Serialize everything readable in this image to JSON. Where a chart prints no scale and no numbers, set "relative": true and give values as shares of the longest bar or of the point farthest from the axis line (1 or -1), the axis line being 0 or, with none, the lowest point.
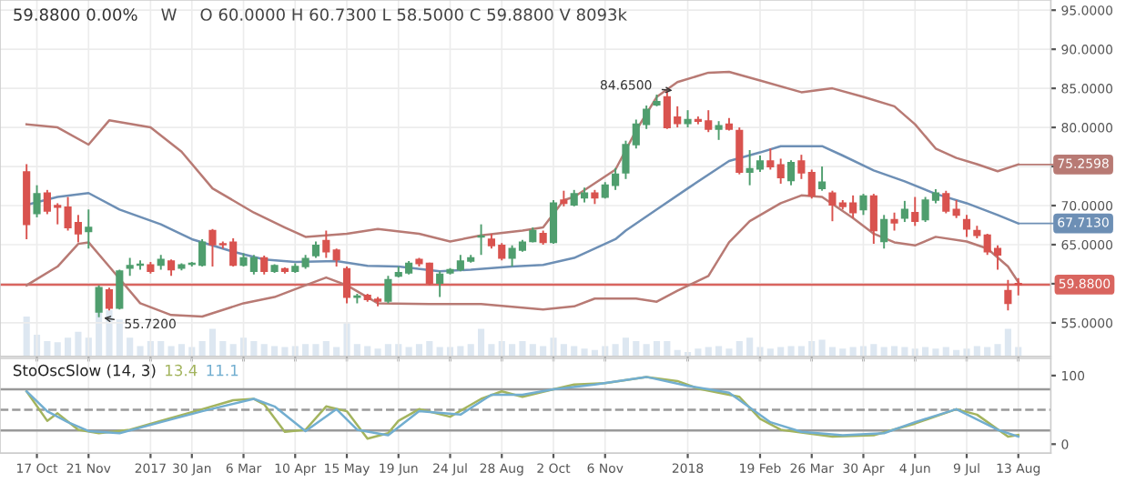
{
  "chart_data": [
    {
      "type": "candlestick",
      "title": "59.8800 0.00%",
      "annotations": [
        "W",
        "O 60.0000 H 60.7300 L 58.5000 C 59.8800 V 8093k",
        {
          "text": "55.7200",
          "x": "2016-11-28",
          "y": 55.72
        },
        {
          "text": "84.6500",
          "x": "2017-12-25",
          "y": 84.65
        }
      ],
      "x": [
        "2016-10-10",
        "2016-10-17",
        "2016-10-24",
        "2016-10-31",
        "2016-11-07",
        "2016-11-14",
        "2016-11-21",
        "2016-11-28",
        "2016-12-05",
        "2016-12-12",
        "2016-12-19",
        "2016-12-26",
        "2017-01-02",
        "2017-01-09",
        "2017-01-16",
        "2017-01-23",
        "2017-01-30",
        "2017-02-06",
        "2017-02-13",
        "2017-02-20",
        "2017-02-27",
        "2017-03-06",
        "2017-03-13",
        "2017-03-20",
        "2017-03-27",
        "2017-04-03",
        "2017-04-10",
        "2017-04-17",
        "2017-04-24",
        "2017-05-01",
        "2017-05-08",
        "2017-05-15",
        "2017-05-22",
        "2017-05-29",
        "2017-06-05",
        "2017-06-12",
        "2017-06-19",
        "2017-06-26",
        "2017-07-03",
        "2017-07-10",
        "2017-07-17",
        "2017-07-24",
        "2017-07-31",
        "2017-08-07",
        "2017-08-14",
        "2017-08-21",
        "2017-08-28",
        "2017-09-04",
        "2017-09-11",
        "2017-09-18",
        "2017-09-25",
        "2017-10-02",
        "2017-10-09",
        "2017-10-16",
        "2017-10-23",
        "2017-10-30",
        "2017-11-06",
        "2017-11-13",
        "2017-11-20",
        "2017-11-27",
        "2017-12-04",
        "2017-12-11",
        "2017-12-18",
        "2017-12-25",
        "2018-01-01",
        "2018-01-08",
        "2018-01-15",
        "2018-01-22",
        "2018-01-29",
        "2018-02-05",
        "2018-02-12",
        "2018-02-19",
        "2018-02-26",
        "2018-03-05",
        "2018-03-12",
        "2018-03-19",
        "2018-03-26",
        "2018-04-02",
        "2018-04-09",
        "2018-04-16",
        "2018-04-23",
        "2018-04-30",
        "2018-05-07",
        "2018-05-14",
        "2018-05-21",
        "2018-05-28",
        "2018-06-04",
        "2018-06-11",
        "2018-06-18",
        "2018-06-25",
        "2018-07-02",
        "2018-07-09",
        "2018-07-16",
        "2018-07-23",
        "2018-07-30",
        "2018-08-06",
        "2018-08-13"
      ],
      "ohlc": [
        [
          74.3,
          75.3,
          65.7,
          67.6
        ],
        [
          69.0,
          72.6,
          68.5,
          71.5
        ],
        [
          71.6,
          72.0,
          68.9,
          69.3
        ],
        [
          70.0,
          70.3,
          67.6,
          69.8
        ],
        [
          69.8,
          71.1,
          66.8,
          67.2
        ],
        [
          67.8,
          68.8,
          65.3,
          66.4
        ],
        [
          66.7,
          69.5,
          64.5,
          67.2
        ],
        [
          56.4,
          59.8,
          55.72,
          59.5
        ],
        [
          59.2,
          59.5,
          56.6,
          56.9
        ],
        [
          56.9,
          61.8,
          56.7,
          61.6
        ],
        [
          62.0,
          63.3,
          61.0,
          62.3
        ],
        [
          62.4,
          63.0,
          61.8,
          62.5
        ],
        [
          62.4,
          62.8,
          61.3,
          61.6
        ],
        [
          62.4,
          63.7,
          61.8,
          63.1
        ],
        [
          62.9,
          63.1,
          61.0,
          61.8
        ],
        [
          62.0,
          62.6,
          61.7,
          62.4
        ],
        [
          62.5,
          62.8,
          62.2,
          62.6
        ],
        [
          62.4,
          65.7,
          62.2,
          65.3
        ],
        [
          66.8,
          67.0,
          62.2,
          65.0
        ],
        [
          65.1,
          65.4,
          64.5,
          65.0
        ],
        [
          65.3,
          65.8,
          62.2,
          62.4
        ],
        [
          62.4,
          63.9,
          62.2,
          63.3
        ],
        [
          61.6,
          63.7,
          61.2,
          63.3
        ],
        [
          63.3,
          63.6,
          61.2,
          61.6
        ],
        [
          61.6,
          62.5,
          61.4,
          62.3
        ],
        [
          61.9,
          62.1,
          61.3,
          61.6
        ],
        [
          61.6,
          62.6,
          61.4,
          62.2
        ],
        [
          62.2,
          63.7,
          61.9,
          63.2
        ],
        [
          63.6,
          65.4,
          63.3,
          64.9
        ],
        [
          65.5,
          66.8,
          63.3,
          64.1
        ],
        [
          64.3,
          64.5,
          62.2,
          63.1
        ],
        [
          61.9,
          62.2,
          57.5,
          58.3
        ],
        [
          58.3,
          58.7,
          57.5,
          58.4
        ],
        [
          58.5,
          58.7,
          57.7,
          58.0
        ],
        [
          58.0,
          58.3,
          57.1,
          57.8
        ],
        [
          57.8,
          61.0,
          57.5,
          60.5
        ],
        [
          61.0,
          62.2,
          60.8,
          61.4
        ],
        [
          61.4,
          62.9,
          61.2,
          62.6
        ],
        [
          63.1,
          63.3,
          62.2,
          62.6
        ],
        [
          62.6,
          62.7,
          59.8,
          60.1
        ],
        [
          60.1,
          61.6,
          58.3,
          61.2
        ],
        [
          61.4,
          62.0,
          61.2,
          61.8
        ],
        [
          61.8,
          63.7,
          61.6,
          62.9
        ],
        [
          62.9,
          63.7,
          62.7,
          63.3
        ],
        [
          66.0,
          67.6,
          63.7,
          66.1
        ],
        [
          65.7,
          66.4,
          64.5,
          64.9
        ],
        [
          64.9,
          65.2,
          63.0,
          63.3
        ],
        [
          63.3,
          64.9,
          62.2,
          64.5
        ],
        [
          64.3,
          65.6,
          64.1,
          65.3
        ],
        [
          65.4,
          67.2,
          65.3,
          66.8
        ],
        [
          66.4,
          66.8,
          65.0,
          65.3
        ],
        [
          65.3,
          70.7,
          65.1,
          70.3
        ],
        [
          70.7,
          71.9,
          69.9,
          70.3
        ],
        [
          70.1,
          72.0,
          69.9,
          71.5
        ],
        [
          71.0,
          72.3,
          70.4,
          71.6
        ],
        [
          71.6,
          72.0,
          70.2,
          71.0
        ],
        [
          71.1,
          73.0,
          70.9,
          72.6
        ],
        [
          72.6,
          74.8,
          72.0,
          74.0
        ],
        [
          74.2,
          78.3,
          73.4,
          77.8
        ],
        [
          77.8,
          81.0,
          77.3,
          80.4
        ],
        [
          80.4,
          82.8,
          79.8,
          82.3
        ],
        [
          82.9,
          84.2,
          82.7,
          83.3
        ],
        [
          83.9,
          84.65,
          79.8,
          80.0
        ],
        [
          81.3,
          82.7,
          80.0,
          80.5
        ],
        [
          80.5,
          82.2,
          80.0,
          81.0
        ],
        [
          81.0,
          81.4,
          80.4,
          80.8
        ],
        [
          80.8,
          82.2,
          79.4,
          79.8
        ],
        [
          79.8,
          80.8,
          78.4,
          80.2
        ],
        [
          80.4,
          81.2,
          79.6,
          79.8
        ],
        [
          79.6,
          80.0,
          74.0,
          74.3
        ],
        [
          74.3,
          77.1,
          72.6,
          74.7
        ],
        [
          74.7,
          76.4,
          74.3,
          75.7
        ],
        [
          75.7,
          77.3,
          74.6,
          75.0
        ],
        [
          75.2,
          76.0,
          72.8,
          73.6
        ],
        [
          73.2,
          75.8,
          72.6,
          75.5
        ],
        [
          75.7,
          76.5,
          73.4,
          74.2
        ],
        [
          74.2,
          74.6,
          70.9,
          71.3
        ],
        [
          72.2,
          75.0,
          71.9,
          73.0
        ],
        [
          71.6,
          71.9,
          68.0,
          70.1
        ],
        [
          70.3,
          70.7,
          69.5,
          69.9
        ],
        [
          70.3,
          71.3,
          68.4,
          69.1
        ],
        [
          69.5,
          71.5,
          68.8,
          71.2
        ],
        [
          71.2,
          71.5,
          65.1,
          66.8
        ],
        [
          65.4,
          68.8,
          64.5,
          68.2
        ],
        [
          68.2,
          69.1,
          66.8,
          67.8
        ],
        [
          68.4,
          70.6,
          67.9,
          69.5
        ],
        [
          69.1,
          71.1,
          67.4,
          68.0
        ],
        [
          68.2,
          71.1,
          67.9,
          70.7
        ],
        [
          70.7,
          72.1,
          70.3,
          71.6
        ],
        [
          71.5,
          71.9,
          69.0,
          69.3
        ],
        [
          69.5,
          70.7,
          68.4,
          68.8
        ],
        [
          68.2,
          68.8,
          66.0,
          67.0
        ],
        [
          66.8,
          67.4,
          65.8,
          66.2
        ],
        [
          66.2,
          66.4,
          63.7,
          64.1
        ],
        [
          64.5,
          64.9,
          61.8,
          63.7
        ],
        [
          59.1,
          60.5,
          56.6,
          57.5
        ],
        [
          60.0,
          60.73,
          58.5,
          59.88
        ]
      ],
      "colors": [
        "#d9534f",
        "#4f9e6e",
        "#d9534f",
        "#d9534f",
        "#d9534f",
        "#d9534f",
        "#4f9e6e",
        "#4f9e6e",
        "#d9534f",
        "#4f9e6e",
        "#4f9e6e",
        "#4f9e6e",
        "#d9534f",
        "#4f9e6e",
        "#d9534f",
        "#4f9e6e",
        "#4f9e6e",
        "#4f9e6e",
        "#d9534f",
        "#d9534f",
        "#d9534f",
        "#4f9e6e",
        "#4f9e6e",
        "#d9534f",
        "#4f9e6e",
        "#d9534f",
        "#4f9e6e",
        "#4f9e6e",
        "#4f9e6e",
        "#d9534f",
        "#d9534f",
        "#d9534f",
        "#4f9e6e",
        "#d9534f",
        "#d9534f",
        "#4f9e6e",
        "#4f9e6e",
        "#4f9e6e",
        "#d9534f",
        "#d9534f",
        "#4f9e6e",
        "#4f9e6e",
        "#4f9e6e",
        "#4f9e6e",
        "#4f9e6e",
        "#d9534f",
        "#d9534f",
        "#4f9e6e",
        "#4f9e6e",
        "#4f9e6e",
        "#d9534f",
        "#4f9e6e",
        "#d9534f",
        "#4f9e6e",
        "#4f9e6e",
        "#d9534f",
        "#4f9e6e",
        "#4f9e6e",
        "#4f9e6e",
        "#4f9e6e",
        "#4f9e6e",
        "#4f9e6e",
        "#d9534f",
        "#d9534f",
        "#4f9e6e",
        "#d9534f",
        "#d9534f",
        "#4f9e6e",
        "#d9534f",
        "#d9534f",
        "#4f9e6e",
        "#4f9e6e",
        "#d9534f",
        "#d9534f",
        "#4f9e6e",
        "#d9534f",
        "#d9534f",
        "#4f9e6e",
        "#d9534f",
        "#d9534f",
        "#d9534f",
        "#4f9e6e",
        "#d9534f",
        "#4f9e6e",
        "#d9534f",
        "#4f9e6e",
        "#d9534f",
        "#4f9e6e",
        "#4f9e6e",
        "#d9534f",
        "#d9534f",
        "#d9534f",
        "#d9534f",
        "#d9534f",
        "#d9534f",
        "#d9534f",
        "#d9534f"
      ],
      "series": [
        {
          "type": "line",
          "color": "#b87a74",
          "x": [
            "2016-10-10",
            "2016-10-31",
            "2016-11-21",
            "2016-12-05",
            "2017-01-02",
            "2017-01-23",
            "2017-02-13",
            "2017-03-13",
            "2017-04-03",
            "2017-04-17",
            "2017-05-15",
            "2017-06-05",
            "2017-07-03",
            "2017-07-24",
            "2017-08-14",
            "2017-09-11",
            "2017-09-25",
            "2017-10-09",
            "2017-10-16",
            "2017-11-13",
            "2017-11-27",
            "2017-12-11",
            "2017-12-25",
            "2018-01-15",
            "2018-01-29",
            "2018-02-19",
            "2018-03-19",
            "2018-04-09",
            "2018-04-30",
            "2018-05-21",
            "2018-06-04",
            "2018-06-18",
            "2018-07-02",
            "2018-07-16",
            "2018-07-30",
            "2018-08-13"
          ],
          "values": [
            80.4,
            80.0,
            77.8,
            80.9,
            80.0,
            76.9,
            72.2,
            69.1,
            67.2,
            66.0,
            66.4,
            67.0,
            66.4,
            65.4,
            66.2,
            66.8,
            67.2,
            70.7,
            71.1,
            74.6,
            79.6,
            83.9,
            85.8,
            87.0,
            87.1,
            86.0,
            84.5,
            85.0,
            83.9,
            82.7,
            80.4,
            77.3,
            76.1,
            75.3,
            74.4,
            75.2598
          ],
          "value_labels": [
            null,
            null,
            null,
            null,
            null,
            null,
            null,
            null,
            null,
            null,
            null,
            null,
            null,
            null,
            null,
            null,
            null,
            null,
            null,
            null,
            null,
            null,
            null,
            null,
            null,
            null,
            null,
            null,
            null,
            null,
            null,
            null,
            null,
            null,
            null,
            "75.2598"
          ]
        },
        {
          "type": "line",
          "color": "#6d8fb5",
          "x": [
            "2016-10-10",
            "2016-10-31",
            "2016-11-21",
            "2016-12-12",
            "2017-01-09",
            "2017-01-30",
            "2017-02-27",
            "2017-03-20",
            "2017-04-10",
            "2017-05-08",
            "2017-05-29",
            "2017-06-19",
            "2017-07-17",
            "2017-08-07",
            "2017-09-04",
            "2017-09-25",
            "2017-10-16",
            "2017-11-13",
            "2017-11-20",
            "2017-12-11",
            "2018-01-01",
            "2018-01-29",
            "2018-02-19",
            "2018-03-05",
            "2018-04-02",
            "2018-04-16",
            "2018-05-07",
            "2018-05-28",
            "2018-06-18",
            "2018-07-09",
            "2018-07-30",
            "2018-08-13"
          ],
          "values": [
            70.1,
            71.1,
            71.6,
            69.5,
            67.6,
            65.7,
            64.1,
            63.1,
            62.8,
            62.9,
            62.3,
            62.2,
            61.6,
            61.8,
            62.2,
            62.4,
            63.3,
            65.7,
            66.8,
            69.5,
            72.2,
            75.7,
            76.8,
            77.6,
            77.6,
            76.4,
            74.5,
            73.1,
            71.5,
            70.3,
            68.8,
            67.713
          ],
          "value_labels": [
            null,
            null,
            null,
            null,
            null,
            null,
            null,
            null,
            null,
            null,
            null,
            null,
            null,
            null,
            null,
            null,
            null,
            null,
            null,
            null,
            null,
            null,
            null,
            null,
            null,
            null,
            null,
            null,
            null,
            null,
            null,
            "67.7130"
          ]
        },
        {
          "type": "line",
          "color": "#b87a74",
          "x": [
            "2016-10-10",
            "2016-10-31",
            "2016-11-14",
            "2016-11-21",
            "2016-12-05",
            "2016-12-26",
            "2017-01-16",
            "2017-02-06",
            "2017-03-06",
            "2017-03-27",
            "2017-04-17",
            "2017-05-01",
            "2017-05-15",
            "2017-06-05",
            "2017-07-10",
            "2017-08-14",
            "2017-09-25",
            "2017-10-16",
            "2017-10-30",
            "2017-11-27",
            "2017-12-11",
            "2017-12-25",
            "2018-01-15",
            "2018-01-29",
            "2018-02-12",
            "2018-03-05",
            "2018-03-19",
            "2018-04-02",
            "2018-04-23",
            "2018-05-07",
            "2018-05-21",
            "2018-06-04",
            "2018-06-18",
            "2018-07-09",
            "2018-07-23",
            "2018-08-06",
            "2018-08-13"
          ],
          "values": [
            59.8,
            62.2,
            65.1,
            65.3,
            62.2,
            57.5,
            56.0,
            55.8,
            57.5,
            58.3,
            59.8,
            60.8,
            59.8,
            57.5,
            57.4,
            57.4,
            56.7,
            57.1,
            58.1,
            58.1,
            57.7,
            59.1,
            61.0,
            65.3,
            68.0,
            70.3,
            71.3,
            71.1,
            68.4,
            66.4,
            65.3,
            64.9,
            66.0,
            65.4,
            64.5,
            62.2,
            60.2
          ]
        }
      ],
      "ref_lines": [
        {
          "axis": "y",
          "value": 59.88,
          "label": "59.8800",
          "color": "#d9655f"
        }
      ],
      "xlim": [
        "2016-09-22",
        "2018-09-04"
      ],
      "xticks": [
        {
          "value": "2016-10-17",
          "label": null
        },
        {
          "value": "2016-11-21",
          "label": null
        },
        {
          "value": "2017-01-02",
          "label": null
        },
        {
          "value": "2017-01-30",
          "label": null
        },
        {
          "value": "2017-03-06",
          "label": null
        },
        {
          "value": "2017-04-10",
          "label": null
        },
        {
          "value": "2017-05-15",
          "label": null
        },
        {
          "value": "2017-06-19",
          "label": null
        },
        {
          "value": "2017-07-24",
          "label": null
        },
        {
          "value": "2017-08-28",
          "label": null
        },
        {
          "value": "2017-10-02",
          "label": null
        },
        {
          "value": "2017-11-06",
          "label": null
        },
        {
          "value": "2018-01-01",
          "label": null
        },
        {
          "value": "2018-02-19",
          "label": null
        },
        {
          "value": "2018-03-26",
          "label": null
        },
        {
          "value": "2018-04-30",
          "label": null
        },
        {
          "value": "2018-06-04",
          "label": null
        },
        {
          "value": "2018-07-09",
          "label": null
        },
        {
          "value": "2018-08-13",
          "label": null
        }
      ],
      "ylim": [
        50.7,
        96.3
      ],
      "yticks": [
        {
          "value": 55,
          "label": "55.0000"
        },
        {
          "value": 60,
          "label": null
        },
        {
          "value": 65,
          "label": "65.0000"
        },
        {
          "value": 70,
          "label": "70.0000"
        },
        {
          "value": 75,
          "label": null
        },
        {
          "value": 80,
          "label": "80.0000"
        },
        {
          "value": 85,
          "label": "85.0000"
        },
        {
          "value": 90,
          "label": "90.0000"
        },
        {
          "value": 95,
          "label": "95.0000"
        }
      ],
      "tick_labels": "y",
      "grid": true
    },
    {
      "type": "bar",
      "relative": true,
      "color": "#dde7f1",
      "tick_labels": false,
      "xlim": [
        "2016-09-22",
        "2018-09-04"
      ],
      "x": [
        "2016-10-10",
        "2016-10-17",
        "2016-10-24",
        "2016-10-31",
        "2016-11-07",
        "2016-11-14",
        "2016-11-21",
        "2016-11-28",
        "2016-12-05",
        "2016-12-12",
        "2016-12-19",
        "2016-12-26",
        "2017-01-02",
        "2017-01-09",
        "2017-01-16",
        "2017-01-23",
        "2017-01-30",
        "2017-02-06",
        "2017-02-13",
        "2017-02-20",
        "2017-02-27",
        "2017-03-06",
        "2017-03-13",
        "2017-03-20",
        "2017-03-27",
        "2017-04-03",
        "2017-04-10",
        "2017-04-17",
        "2017-04-24",
        "2017-05-01",
        "2017-05-08",
        "2017-05-15",
        "2017-05-22",
        "2017-05-29",
        "2017-06-05",
        "2017-06-12",
        "2017-06-19",
        "2017-06-26",
        "2017-07-03",
        "2017-07-10",
        "2017-07-17",
        "2017-07-24",
        "2017-07-31",
        "2017-08-07",
        "2017-08-14",
        "2017-08-21",
        "2017-08-28",
        "2017-09-04",
        "2017-09-11",
        "2017-09-18",
        "2017-09-25",
        "2017-10-02",
        "2017-10-09",
        "2017-10-16",
        "2017-10-23",
        "2017-10-30",
        "2017-11-06",
        "2017-11-13",
        "2017-11-20",
        "2017-11-27",
        "2017-12-04",
        "2017-12-11",
        "2017-12-18",
        "2017-12-25",
        "2018-01-01",
        "2018-01-08",
        "2018-01-15",
        "2018-01-22",
        "2018-01-29",
        "2018-02-05",
        "2018-02-12",
        "2018-02-19",
        "2018-02-26",
        "2018-03-05",
        "2018-03-12",
        "2018-03-19",
        "2018-03-26",
        "2018-04-02",
        "2018-04-09",
        "2018-04-16",
        "2018-04-23",
        "2018-04-30",
        "2018-05-07",
        "2018-05-14",
        "2018-05-21",
        "2018-05-28",
        "2018-06-04",
        "2018-06-11",
        "2018-06-18",
        "2018-06-25",
        "2018-07-02",
        "2018-07-09",
        "2018-07-16",
        "2018-07-23",
        "2018-07-30",
        "2018-08-06",
        "2018-08-13"
      ],
      "values": [
        0.81,
        0.44,
        0.31,
        0.29,
        0.38,
        0.5,
        0.38,
        1.0,
        0.94,
        0.75,
        0.38,
        0.21,
        0.31,
        0.31,
        0.21,
        0.25,
        0.19,
        0.31,
        0.56,
        0.31,
        0.25,
        0.38,
        0.31,
        0.25,
        0.21,
        0.19,
        0.21,
        0.25,
        0.25,
        0.31,
        0.19,
        0.69,
        0.25,
        0.21,
        0.16,
        0.25,
        0.25,
        0.19,
        0.25,
        0.31,
        0.19,
        0.19,
        0.21,
        0.25,
        0.56,
        0.25,
        0.31,
        0.25,
        0.31,
        0.25,
        0.21,
        0.38,
        0.25,
        0.21,
        0.16,
        0.13,
        0.21,
        0.25,
        0.38,
        0.31,
        0.25,
        0.31,
        0.31,
        0.13,
        0.09,
        0.16,
        0.19,
        0.21,
        0.16,
        0.31,
        0.38,
        0.19,
        0.16,
        0.19,
        0.21,
        0.21,
        0.31,
        0.34,
        0.19,
        0.16,
        0.19,
        0.21,
        0.25,
        0.19,
        0.21,
        0.19,
        0.16,
        0.19,
        0.16,
        0.19,
        0.13,
        0.16,
        0.21,
        0.19,
        0.25,
        0.56,
        0.19
      ]
    },
    {
      "type": "line",
      "legend_title": "StoOscSlow (14, 3)",
      "legend": "top left",
      "grid": "x",
      "series": [
        {
          "name": "13.4",
          "color": "#a3b45e",
          "x": [
            "2016-10-10",
            "2016-10-24",
            "2016-10-31",
            "2016-11-14",
            "2016-11-28",
            "2016-12-19",
            "2017-01-09",
            "2017-02-06",
            "2017-02-27",
            "2017-03-13",
            "2017-03-20",
            "2017-04-03",
            "2017-04-17",
            "2017-05-01",
            "2017-05-15",
            "2017-05-29",
            "2017-06-12",
            "2017-06-19",
            "2017-07-03",
            "2017-07-24",
            "2017-08-14",
            "2017-08-28",
            "2017-09-11",
            "2017-10-02",
            "2017-10-16",
            "2017-11-06",
            "2017-12-04",
            "2017-12-25",
            "2018-01-08",
            "2018-02-05",
            "2018-02-19",
            "2018-03-05",
            "2018-04-09",
            "2018-05-07",
            "2018-06-04",
            "2018-07-02",
            "2018-07-16",
            "2018-08-06",
            "2018-08-13"
          ],
          "values": [
            77,
            34,
            45,
            21,
            16,
            21,
            34,
            51,
            64,
            66,
            58,
            18,
            21,
            55,
            48,
            8,
            16,
            34,
            51,
            40,
            66,
            77,
            69,
            80,
            87,
            89,
            98,
            92,
            81,
            69,
            37,
            21,
            11,
            13,
            30,
            51,
            43,
            11,
            13.4
          ]
        },
        {
          "name": "11.1",
          "color": "#72aed0",
          "x": [
            "2016-10-10",
            "2016-10-24",
            "2016-11-07",
            "2016-11-21",
            "2016-12-12",
            "2017-01-09",
            "2017-02-06",
            "2017-03-13",
            "2017-03-27",
            "2017-04-17",
            "2017-05-08",
            "2017-05-22",
            "2017-06-12",
            "2017-07-03",
            "2017-07-31",
            "2017-08-21",
            "2017-09-11",
            "2017-10-02",
            "2017-10-30",
            "2017-12-04",
            "2018-01-01",
            "2018-01-29",
            "2018-02-26",
            "2018-03-19",
            "2018-04-16",
            "2018-05-14",
            "2018-06-04",
            "2018-07-02",
            "2018-07-30",
            "2018-08-13"
          ],
          "values": [
            77,
            48,
            32,
            19,
            16,
            32,
            48,
            66,
            55,
            19,
            51,
            21,
            13,
            48,
            43,
            72,
            72,
            80,
            87,
            98,
            85,
            75,
            32,
            18,
            13,
            16,
            32,
            51,
            21,
            11.1
          ]
        }
      ],
      "ref_lines": [
        {
          "axis": "y",
          "value": 80,
          "color": "#999999"
        },
        {
          "axis": "y",
          "value": 50,
          "color": "#999999",
          "line_style": "dashed"
        },
        {
          "axis": "y",
          "value": 20,
          "color": "#999999"
        }
      ],
      "xlim": [
        "2016-09-22",
        "2018-09-04"
      ],
      "xticks": [
        {
          "value": "2016-10-17",
          "label": "17 Oct"
        },
        {
          "value": "2016-11-21",
          "label": "21 Nov"
        },
        {
          "value": "2017-01-02",
          "label": "2017"
        },
        {
          "value": "2017-01-30",
          "label": "30 Jan"
        },
        {
          "value": "2017-03-06",
          "label": "6 Mar"
        },
        {
          "value": "2017-04-10",
          "label": "10 Apr"
        },
        {
          "value": "2017-05-15",
          "label": "15 May"
        },
        {
          "value": "2017-06-19",
          "label": "19 Jun"
        },
        {
          "value": "2017-07-24",
          "label": "24 Jul"
        },
        {
          "value": "2017-08-28",
          "label": "28 Aug"
        },
        {
          "value": "2017-10-02",
          "label": "2 Oct"
        },
        {
          "value": "2017-11-06",
          "label": "6 Nov"
        },
        {
          "value": "2018-01-01",
          "label": "2018"
        },
        {
          "value": "2018-02-19",
          "label": "19 Feb"
        },
        {
          "value": "2018-03-26",
          "label": "26 Mar"
        },
        {
          "value": "2018-04-30",
          "label": "30 Apr"
        },
        {
          "value": "2018-06-04",
          "label": "4 Jun"
        },
        {
          "value": "2018-07-09",
          "label": "9 Jul"
        },
        {
          "value": "2018-08-13",
          "label": "13 Aug"
        }
      ],
      "ylim": [
        -13,
        125
      ],
      "yticks": [
        0,
        100
      ]
    }
  ]
}
